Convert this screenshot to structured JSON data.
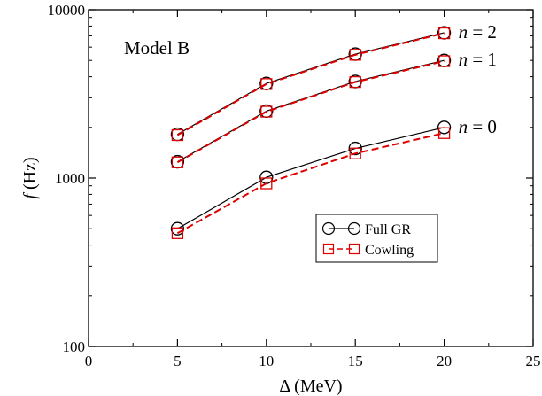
{
  "chart_data": {
    "type": "line",
    "title": "",
    "annotation": "Model B",
    "xlabel": "Δ (MeV)",
    "ylabel_italic": "f",
    "ylabel_rest": " (Hz)",
    "xlim": [
      0,
      25
    ],
    "ylim": [
      100,
      10000
    ],
    "y_scale": "log",
    "xticks": [
      0,
      5,
      10,
      15,
      20,
      25
    ],
    "yticks": [
      100,
      1000,
      10000
    ],
    "x": [
      5,
      10,
      15,
      20
    ],
    "series": [
      {
        "name": "Full GR",
        "group": "n=0",
        "color": "#000000",
        "dash": "solid",
        "marker": "circle",
        "values": [
          500,
          1010,
          1500,
          2000
        ]
      },
      {
        "name": "Cowling",
        "group": "n=0",
        "color": "#dd0000",
        "dash": "dashed",
        "marker": "square",
        "values": [
          470,
          930,
          1400,
          1850
        ]
      },
      {
        "name": "Full GR",
        "group": "n=1",
        "color": "#000000",
        "dash": "solid",
        "marker": "circle",
        "values": [
          1250,
          2500,
          3750,
          5000
        ]
      },
      {
        "name": "Cowling",
        "group": "n=1",
        "color": "#dd0000",
        "dash": "dashed",
        "marker": "square",
        "values": [
          1240,
          2480,
          3720,
          4950
        ]
      },
      {
        "name": "Full GR",
        "group": "n=2",
        "color": "#000000",
        "dash": "solid",
        "marker": "circle",
        "values": [
          1820,
          3650,
          5450,
          7300
        ]
      },
      {
        "name": "Cowling",
        "group": "n=2",
        "color": "#dd0000",
        "dash": "dashed",
        "marker": "square",
        "values": [
          1800,
          3620,
          5400,
          7250
        ]
      }
    ],
    "curve_labels": [
      {
        "italic": "n",
        "rest": " = 2",
        "group": "n=2"
      },
      {
        "italic": "n",
        "rest": " = 1",
        "group": "n=1"
      },
      {
        "italic": "n",
        "rest": " = 0",
        "group": "n=0"
      }
    ],
    "legend": [
      {
        "label": "Full GR",
        "color": "#000000",
        "dash": "solid",
        "marker": "circle"
      },
      {
        "label": "Cowling",
        "color": "#dd0000",
        "dash": "dashed",
        "marker": "square"
      }
    ],
    "legend_position": "center-right",
    "grid": false
  }
}
